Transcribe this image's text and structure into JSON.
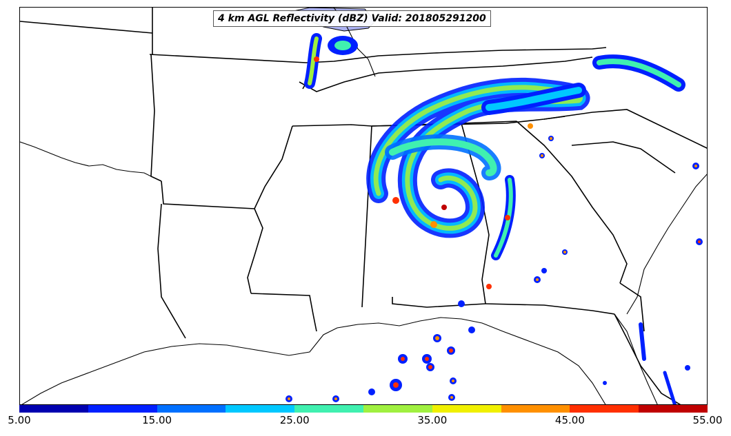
{
  "title": "4 km AGL Reflectivity (dBZ) Valid: 201805291200",
  "colorbar": {
    "min": 5,
    "max": 55,
    "tick_labels": [
      "5.00",
      "15.00",
      "25.00",
      "35.00",
      "45.00",
      "55.00"
    ],
    "colors": [
      "#0000b0",
      "#0020ff",
      "#0070ff",
      "#00c8ff",
      "#40f0b0",
      "#a0f040",
      "#f0f000",
      "#ff9000",
      "#ff3000",
      "#c00000"
    ]
  },
  "map": {
    "features": [
      "state-borders",
      "coastline",
      "great-lakes"
    ],
    "storm": "subtropical-storm-reflectivity"
  }
}
